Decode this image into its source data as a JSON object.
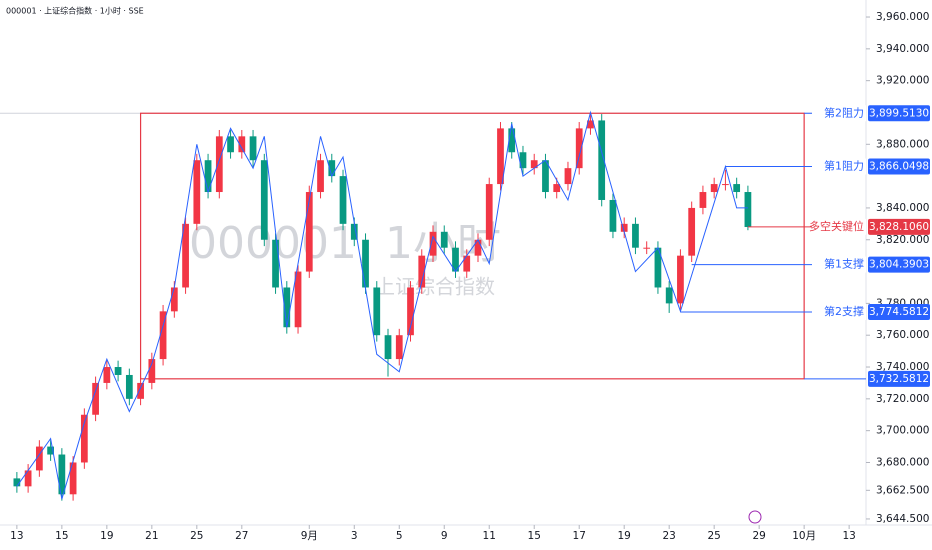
{
  "chart_data": {
    "type": "candlestick",
    "title": "000001 · 上证综合指数 · 1小时 · SSE",
    "watermark": [
      "000001, 1小时",
      "上证综合指数"
    ],
    "up_color": "#f23645",
    "down_color": "#089981",
    "xlim": [
      -1.5,
      75.5
    ],
    "xticks": [
      {
        "value": 0,
        "label": "13"
      },
      {
        "value": 4,
        "label": "15"
      },
      {
        "value": 8,
        "label": "19"
      },
      {
        "value": 12,
        "label": "21"
      },
      {
        "value": 16,
        "label": "25"
      },
      {
        "value": 20,
        "label": "27"
      },
      {
        "value": 26,
        "label": "9月"
      },
      {
        "value": 30,
        "label": "3"
      },
      {
        "value": 34,
        "label": "5"
      },
      {
        "value": 38,
        "label": "9"
      },
      {
        "value": 42,
        "label": "11"
      },
      {
        "value": 46,
        "label": "15"
      },
      {
        "value": 50,
        "label": "17"
      },
      {
        "value": 54,
        "label": "19"
      },
      {
        "value": 58,
        "label": "23"
      },
      {
        "value": 62,
        "label": "25"
      },
      {
        "value": 66,
        "label": "29"
      },
      {
        "value": 70,
        "label": "10月"
      },
      {
        "value": 74,
        "label": "13"
      }
    ],
    "ylim": [
      3640.7,
      3970.7
    ],
    "yticks": [
      {
        "value": 3960,
        "label": "3,960.000"
      },
      {
        "value": 3940,
        "label": "3,940.000"
      },
      {
        "value": 3920,
        "label": "3,920.000"
      },
      {
        "value": 3880,
        "label": "3,880.000"
      },
      {
        "value": 3840,
        "label": "3,840.000"
      },
      {
        "value": 3820,
        "label": "3,820.000"
      },
      {
        "value": 3780,
        "label": "3,780.000"
      },
      {
        "value": 3760,
        "label": "3,760.000"
      },
      {
        "value": 3740,
        "label": "3,740.000"
      },
      {
        "value": 3720,
        "label": "3,720.000"
      },
      {
        "value": 3700,
        "label": "3,700.000"
      },
      {
        "value": 3680,
        "label": "3,680.000"
      },
      {
        "value": 3662.5,
        "label": "3,662.500"
      },
      {
        "value": 3644.5,
        "label": "3,644.500"
      }
    ],
    "open": [
      3670,
      3665,
      3675,
      3690,
      3685,
      3660,
      3680,
      3710,
      3730,
      3740,
      3735,
      3720,
      3730,
      3745,
      3775,
      3790,
      3830,
      3870,
      3850,
      3885,
      3875,
      3885,
      3870,
      3820,
      3790,
      3765,
      3800,
      3850,
      3870,
      3860,
      3830,
      3820,
      3790,
      3760,
      3745,
      3760,
      3790,
      3810,
      3825,
      3815,
      3800,
      3810,
      3820,
      3855,
      3890,
      3875,
      3865,
      3870,
      3850,
      3855,
      3865,
      3890,
      3895,
      3845,
      3825,
      3830,
      3815,
      3815,
      3790,
      3780,
      3810,
      3840,
      3850,
      3855,
      3855,
      3850
    ],
    "close": [
      3665,
      3675,
      3690,
      3685,
      3660,
      3680,
      3710,
      3730,
      3740,
      3735,
      3720,
      3730,
      3745,
      3775,
      3790,
      3830,
      3870,
      3850,
      3885,
      3875,
      3885,
      3870,
      3820,
      3790,
      3765,
      3800,
      3850,
      3870,
      3860,
      3830,
      3820,
      3790,
      3760,
      3745,
      3760,
      3790,
      3810,
      3825,
      3815,
      3800,
      3810,
      3820,
      3855,
      3890,
      3875,
      3865,
      3870,
      3850,
      3855,
      3865,
      3890,
      3895,
      3845,
      3825,
      3830,
      3815,
      3815,
      3790,
      3780,
      3810,
      3840,
      3850,
      3855,
      3855,
      3850,
      3828
    ],
    "high": [
      3674,
      3679,
      3694,
      3694,
      3689,
      3684,
      3714,
      3734,
      3744,
      3744,
      3739,
      3734,
      3749,
      3779,
      3794,
      3834,
      3874,
      3874,
      3889,
      3889,
      3889,
      3889,
      3874,
      3824,
      3794,
      3804,
      3854,
      3874,
      3874,
      3864,
      3834,
      3824,
      3794,
      3764,
      3764,
      3794,
      3814,
      3829,
      3829,
      3819,
      3814,
      3824,
      3859,
      3894,
      3894,
      3879,
      3874,
      3874,
      3859,
      3869,
      3894,
      3899,
      3899,
      3849,
      3834,
      3834,
      3819,
      3819,
      3794,
      3814,
      3844,
      3854,
      3859,
      3864,
      3859,
      3854
    ],
    "low": [
      3661,
      3661,
      3671,
      3681,
      3656,
      3656,
      3676,
      3706,
      3726,
      3731,
      3716,
      3716,
      3726,
      3741,
      3771,
      3786,
      3826,
      3846,
      3846,
      3871,
      3871,
      3866,
      3816,
      3786,
      3761,
      3761,
      3796,
      3846,
      3856,
      3826,
      3816,
      3786,
      3756,
      3734,
      3741,
      3756,
      3786,
      3806,
      3811,
      3796,
      3796,
      3806,
      3816,
      3851,
      3871,
      3861,
      3861,
      3846,
      3846,
      3851,
      3861,
      3886,
      3841,
      3821,
      3821,
      3811,
      3811,
      3786,
      3774,
      3776,
      3806,
      3836,
      3846,
      3851,
      3846,
      3826
    ],
    "zigzag": {
      "color": "#2962ff",
      "x": [
        0,
        3,
        4,
        6,
        8,
        10,
        12,
        14,
        16,
        17,
        19,
        21,
        22,
        24,
        27,
        28,
        29,
        32,
        34,
        37,
        39,
        41,
        42,
        44,
        45,
        47,
        49,
        51,
        55,
        57,
        59,
        63,
        64,
        65
      ],
      "y": [
        3665,
        3695,
        3657,
        3705,
        3745,
        3712,
        3742,
        3790,
        3880,
        3850,
        3890,
        3865,
        3885,
        3765,
        3885,
        3860,
        3872,
        3748,
        3737,
        3822,
        3800,
        3820,
        3805,
        3893,
        3860,
        3870,
        3845,
        3900,
        3800,
        3815,
        3775,
        3866,
        3840,
        3840
      ]
    },
    "box": {
      "x0": 11,
      "x1": 70,
      "low": 3732.5812,
      "high": 3899.513,
      "low_label": "3,732.5812",
      "color": "#e53946"
    },
    "levels": {
      "names": [
        "第2阻力",
        "第1阻力",
        "多空关键位",
        "第1支撑",
        "第2支撑"
      ],
      "values": [
        3899.513,
        3866.0498,
        3828.106,
        3804.3903,
        3774.5812
      ],
      "value_labels": [
        "3,899.5130",
        "3,866.0498",
        "3,828.1060",
        "3,804.3903",
        "3,774.5812"
      ],
      "starts": [
        70,
        63,
        65,
        60,
        59
      ],
      "colors": [
        "#2962ff",
        "#2962ff",
        "#e53946",
        "#2962ff",
        "#2962ff"
      ]
    }
  }
}
